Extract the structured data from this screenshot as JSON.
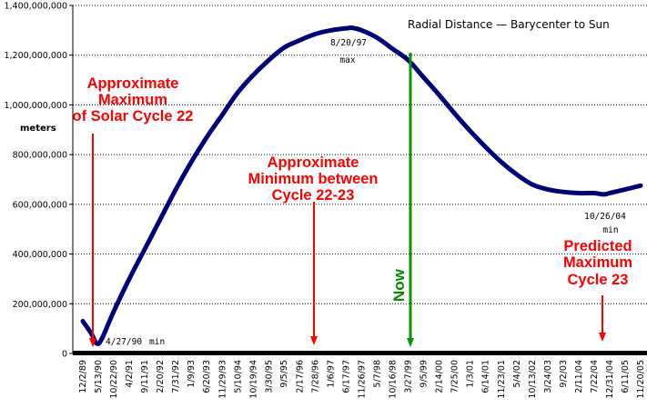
{
  "chart_data": {
    "type": "line",
    "title": "Radial Distance — Barycenter to Sun",
    "ylabel": "meters",
    "xlabel": "",
    "ylim": [
      0,
      1400000000
    ],
    "y_ticks": [
      "0",
      "200,000,000",
      "400,000,000",
      "600,000,000",
      "800,000,000",
      "1,000,000,000",
      "1,200,000,000",
      "1,400,000,000"
    ],
    "y_tick_values": [
      0,
      200000000,
      400000000,
      600000000,
      800000000,
      1000000000,
      1200000000,
      1400000000
    ],
    "x_ticks": [
      "12/2/89",
      "5/13/90",
      "10/22/90",
      "4/2/91",
      "9/11/91",
      "2/20/92",
      "7/31/92",
      "1/9/93",
      "6/20/93",
      "11/29/93",
      "5/10/94",
      "10/19/94",
      "3/30/95",
      "9/5/95",
      "2/17/96",
      "7/28/96",
      "1/6/97",
      "6/17/97",
      "11/26/97",
      "5/7/98",
      "10/16/98",
      "3/27/99",
      "9/5/99",
      "2/14/00",
      "7/25/00",
      "1/3/01",
      "6/14/01",
      "11/23/01",
      "5/4/02",
      "10/13/02",
      "3/24/03",
      "9/2/03",
      "2/11/04",
      "7/22/04",
      "12/31/04",
      "6/11/05",
      "11/20/05"
    ],
    "grid": true,
    "series": [
      {
        "color": "#00007b",
        "x": [
          "12/2/89",
          "3/1/90",
          "4/27/90",
          "6/20/90",
          "10/22/90",
          "4/2/91",
          "9/11/91",
          "2/20/92",
          "7/31/92",
          "1/9/93",
          "6/20/93",
          "11/29/93",
          "5/10/94",
          "10/19/94",
          "3/30/95",
          "9/5/95",
          "2/17/96",
          "7/28/96",
          "1/6/97",
          "6/17/97",
          "8/20/97",
          "11/26/97",
          "5/7/98",
          "10/16/98",
          "3/27/99",
          "9/5/99",
          "2/14/00",
          "7/25/00",
          "1/3/01",
          "6/14/01",
          "11/23/01",
          "5/4/02",
          "10/13/02",
          "3/24/03",
          "9/2/03",
          "2/11/04",
          "7/22/04",
          "10/26/04",
          "12/31/04",
          "6/11/05",
          "11/20/05"
        ],
        "values": [
          130000000,
          80000000,
          40000000,
          60000000,
          170000000,
          300000000,
          420000000,
          540000000,
          660000000,
          770000000,
          870000000,
          960000000,
          1050000000,
          1120000000,
          1180000000,
          1230000000,
          1260000000,
          1285000000,
          1300000000,
          1308000000,
          1310000000,
          1300000000,
          1270000000,
          1225000000,
          1180000000,
          1110000000,
          1040000000,
          965000000,
          895000000,
          830000000,
          770000000,
          720000000,
          680000000,
          660000000,
          650000000,
          645000000,
          645000000,
          640000000,
          645000000,
          660000000,
          675000000
        ]
      }
    ],
    "annotations": {
      "max_date": "8/20/97",
      "max_word": "max",
      "min1_date": "4/27/90",
      "min1_word": "min",
      "min2_date": "10/26/04",
      "min2_word": "min",
      "cycle22_max": [
        "Approximate",
        "Maximum",
        "of Solar Cycle 22"
      ],
      "min_22_23": [
        "Approximate",
        "Minimum between",
        "Cycle 22-23"
      ],
      "predicted": [
        "Predicted",
        "Maximum",
        "Cycle 23"
      ],
      "now": "Now"
    },
    "colors": {
      "line": "#00007b",
      "annotation": "#ff0000",
      "now": "#008800",
      "grid": "#000000"
    }
  }
}
